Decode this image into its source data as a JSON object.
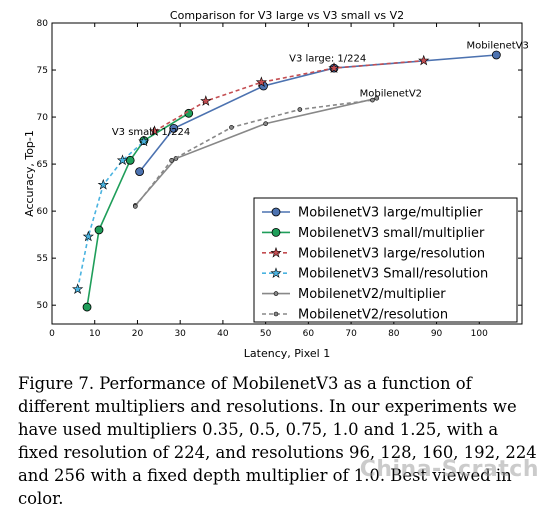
{
  "chart_data": {
    "type": "line",
    "title": "Comparison for V3 large vs V3 small vs V2",
    "xlabel": "Latency, Pixel 1",
    "ylabel": "Accuracy, Top-1",
    "xlim": [
      0,
      110
    ],
    "ylim": [
      48,
      80
    ],
    "xticks": [
      0,
      10,
      20,
      30,
      40,
      50,
      60,
      70,
      80,
      90,
      100
    ],
    "yticks": [
      50,
      55,
      60,
      65,
      70,
      75,
      80
    ],
    "grid": false,
    "legend_position": "lower-right",
    "series": [
      {
        "name": "MobilenetV3 large/multiplier",
        "color": "#4c72b0",
        "style": "solid",
        "marker": "circle-large",
        "x": [
          20.5,
          28.5,
          49.5,
          66,
          104
        ],
        "y": [
          64.2,
          68.8,
          73.3,
          75.2,
          76.6
        ]
      },
      {
        "name": "MobilenetV3 small/multiplier",
        "color": "#1f9e5a",
        "style": "solid",
        "marker": "circle-large",
        "x": [
          8.2,
          11,
          18.3,
          21.5,
          32
        ],
        "y": [
          49.8,
          58.0,
          65.4,
          67.5,
          70.4
        ]
      },
      {
        "name": "MobilenetV3 large/resolution",
        "color": "#c44e52",
        "style": "dashed",
        "marker": "star",
        "x": [
          24,
          36,
          49,
          66,
          87
        ],
        "y": [
          68.5,
          71.7,
          73.7,
          75.2,
          76.0
        ]
      },
      {
        "name": "MobilenetV3 Small/resolution",
        "color": "#4ab3e0",
        "style": "dashed",
        "marker": "star",
        "x": [
          6,
          8.5,
          12,
          16.5,
          21.5
        ],
        "y": [
          51.7,
          57.3,
          62.8,
          65.4,
          67.4
        ]
      },
      {
        "name": "MobilenetV2/multiplier",
        "color": "#888888",
        "style": "solid",
        "marker": "dot",
        "x": [
          19.5,
          29,
          50,
          76
        ],
        "y": [
          60.6,
          65.6,
          69.3,
          72.0
        ]
      },
      {
        "name": "MobilenetV2/resolution",
        "color": "#888888",
        "style": "dashed",
        "marker": "dot",
        "x": [
          19.5,
          28,
          42,
          58,
          75
        ],
        "y": [
          60.5,
          65.4,
          68.9,
          70.8,
          71.8
        ]
      }
    ],
    "annotations": [
      {
        "text": "MobilenetV3",
        "x": 97,
        "y": 77.3
      },
      {
        "text": "V3 large: 1/224",
        "x": 55.5,
        "y": 75.9
      },
      {
        "text": "MobilenetV2",
        "x": 72,
        "y": 72.2
      },
      {
        "text": "V3 small: 1/224",
        "x": 14,
        "y": 68.1
      }
    ]
  },
  "caption": "Figure 7. Performance of MobilenetV3 as a function of different multipliers and resolutions. In our experiments we have used multipliers 0.35, 0.5, 0.75, 1.0 and 1.25, with a fixed resolution of 224, and resolutions 96, 128, 160, 192, 224 and 256 with a fixed depth multiplier of 1.0. Best viewed in color.",
  "watermark": "China-Scratch"
}
